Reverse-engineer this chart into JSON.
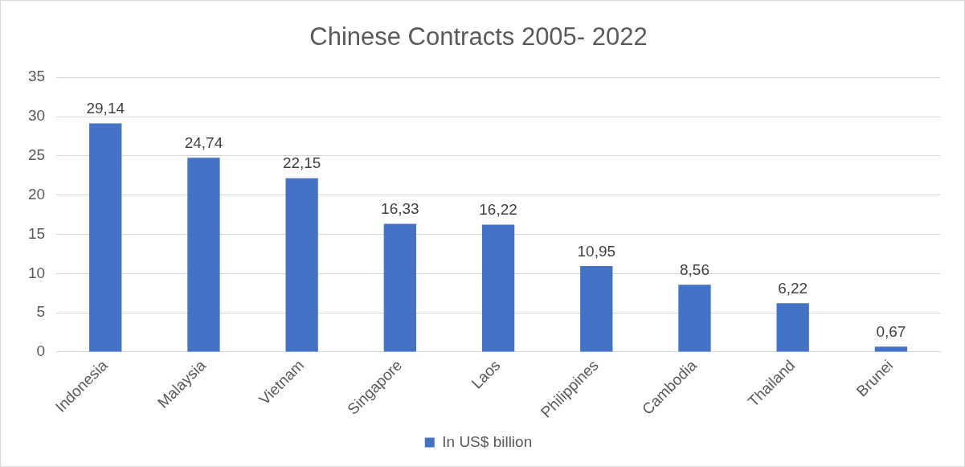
{
  "chart_data": {
    "type": "bar",
    "title": "Chinese Contracts 2005- 2022",
    "categories": [
      "Indonesia",
      "Malaysia",
      "Vietnam",
      "Singapore",
      "Laos",
      "Philippines",
      "Cambodia",
      "Thailand",
      "Brunei"
    ],
    "series": [
      {
        "name": "In US$ billion",
        "color": "#4472c4",
        "values": [
          29.14,
          24.74,
          22.15,
          16.33,
          16.22,
          10.95,
          8.56,
          6.22,
          0.67
        ],
        "value_labels": [
          "29,14",
          "24,74",
          "22,15",
          "16,33",
          "16,22",
          "10,95",
          "8,56",
          "6,22",
          "0,67"
        ]
      }
    ],
    "ylim": [
      0,
      35
    ],
    "yticks": [
      0,
      5,
      10,
      15,
      20,
      25,
      30,
      35
    ],
    "grid": "y",
    "legend": "bottom"
  }
}
